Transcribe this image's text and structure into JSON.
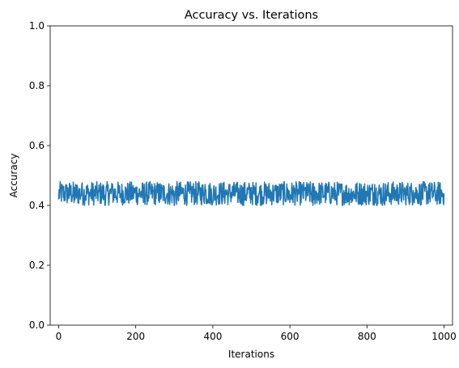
{
  "chart_data": {
    "type": "line",
    "title": "Accuracy vs. Iterations",
    "xlabel": "Iterations",
    "ylabel": "Accuracy",
    "xlim": [
      -22,
      1022
    ],
    "ylim": [
      0,
      1
    ],
    "x_ticks": [
      0,
      200,
      400,
      600,
      800,
      1000
    ],
    "x_tick_labels": [
      "0",
      "200",
      "400",
      "600",
      "800",
      "1000"
    ],
    "y_ticks": [
      0.0,
      0.2,
      0.4,
      0.6,
      0.8,
      1.0
    ],
    "y_tick_labels": [
      "0.0",
      "0.2",
      "0.4",
      "0.6",
      "0.8",
      "1.0"
    ],
    "grid": false,
    "legend": "none",
    "series": [
      {
        "color": "#1f77b4",
        "x_start": 0,
        "x_end": 1000,
        "x_step": 1,
        "value_min": 0.4,
        "value_max": 0.48,
        "value_mean": 0.44,
        "values_sampled_every_20": [
          0.42,
          0.46,
          0.41,
          0.47,
          0.43,
          0.45,
          0.4,
          0.47,
          0.44,
          0.42,
          0.46,
          0.41,
          0.45,
          0.47,
          0.43,
          0.4,
          0.46,
          0.44,
          0.42,
          0.47,
          0.41,
          0.45,
          0.43,
          0.47,
          0.4,
          0.46,
          0.44,
          0.42,
          0.45,
          0.47,
          0.41,
          0.43,
          0.46,
          0.4,
          0.44,
          0.47,
          0.42,
          0.45,
          0.41,
          0.46,
          0.43,
          0.47,
          0.4,
          0.44,
          0.46,
          0.42,
          0.45,
          0.41,
          0.47,
          0.43,
          0.44
        ]
      }
    ]
  }
}
